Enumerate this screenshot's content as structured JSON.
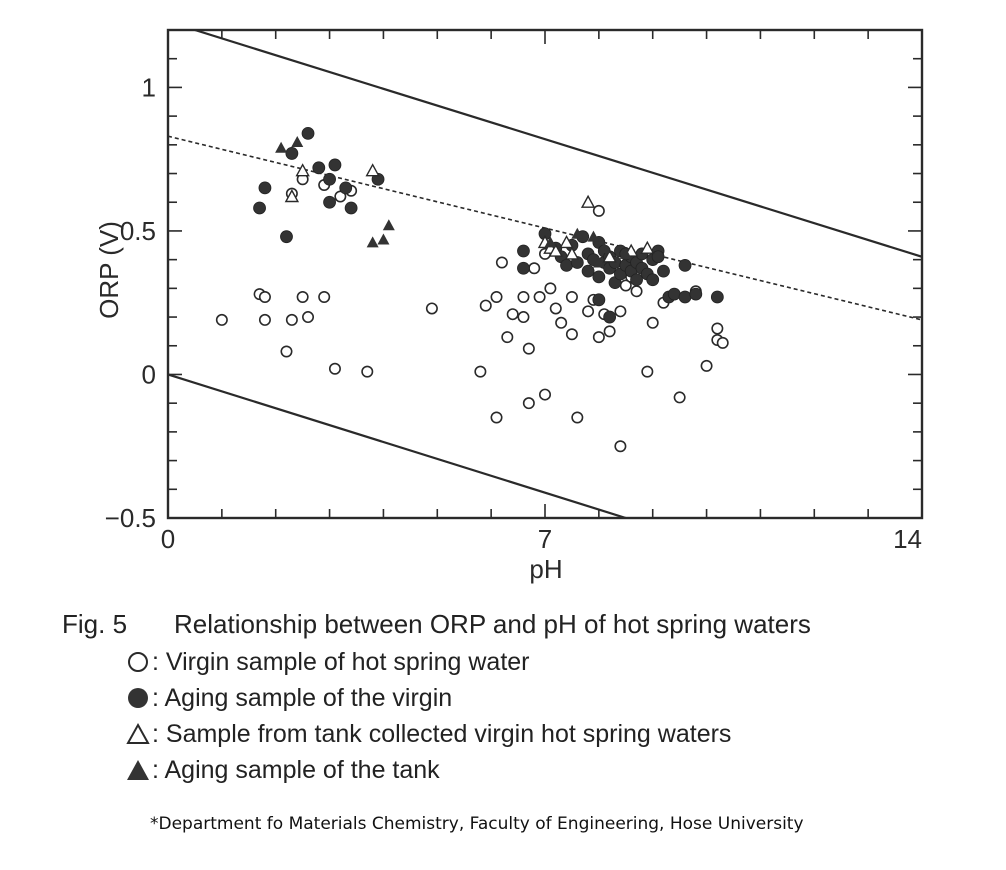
{
  "chart_data": {
    "type": "scatter",
    "title": "",
    "xlabel": "pH",
    "ylabel": "ORP (V)",
    "xlim": [
      0,
      14
    ],
    "ylim": [
      -0.5,
      1.2
    ],
    "x_ticks": [
      0,
      7,
      14
    ],
    "x_tick_labels": [
      "0",
      "7",
      "14"
    ],
    "y_ticks": [
      -0.5,
      0,
      0.5,
      1
    ],
    "y_tick_labels": [
      "−0.5",
      "0",
      "0.5",
      "1"
    ],
    "grid": false,
    "lines": [
      {
        "style": "solid",
        "points": [
          [
            0.5,
            1.2
          ],
          [
            14,
            0.41
          ]
        ]
      },
      {
        "style": "dashed",
        "points": [
          [
            0,
            0.83
          ],
          [
            14,
            0.19
          ]
        ]
      },
      {
        "style": "solid",
        "points": [
          [
            0,
            0.0
          ],
          [
            8.5,
            -0.5
          ]
        ]
      }
    ],
    "series": [
      {
        "name": "Virgin sample of hot spring water",
        "marker": "open-circle",
        "points": [
          [
            1.0,
            0.19
          ],
          [
            1.7,
            0.28
          ],
          [
            1.8,
            0.27
          ],
          [
            1.8,
            0.19
          ],
          [
            2.2,
            0.08
          ],
          [
            2.3,
            0.19
          ],
          [
            2.5,
            0.27
          ],
          [
            2.6,
            0.2
          ],
          [
            2.9,
            0.27
          ],
          [
            3.1,
            0.02
          ],
          [
            3.7,
            0.01
          ],
          [
            2.5,
            0.68
          ],
          [
            2.9,
            0.66
          ],
          [
            3.4,
            0.64
          ],
          [
            3.2,
            0.62
          ],
          [
            2.3,
            0.63
          ],
          [
            4.9,
            0.23
          ],
          [
            5.8,
            0.01
          ],
          [
            5.9,
            0.24
          ],
          [
            6.1,
            0.27
          ],
          [
            6.1,
            -0.15
          ],
          [
            6.2,
            0.39
          ],
          [
            6.3,
            0.13
          ],
          [
            6.4,
            0.21
          ],
          [
            6.6,
            0.27
          ],
          [
            6.6,
            0.2
          ],
          [
            6.7,
            0.09
          ],
          [
            6.7,
            -0.1
          ],
          [
            6.8,
            0.37
          ],
          [
            6.9,
            0.27
          ],
          [
            7.0,
            0.42
          ],
          [
            7.0,
            -0.07
          ],
          [
            7.1,
            0.3
          ],
          [
            7.2,
            0.23
          ],
          [
            7.3,
            0.18
          ],
          [
            7.5,
            0.14
          ],
          [
            7.5,
            0.27
          ],
          [
            7.6,
            -0.15
          ],
          [
            7.8,
            0.22
          ],
          [
            7.9,
            0.26
          ],
          [
            8.0,
            0.13
          ],
          [
            8.1,
            0.21
          ],
          [
            8.2,
            0.15
          ],
          [
            8.4,
            0.22
          ],
          [
            8.4,
            -0.25
          ],
          [
            8.5,
            0.31
          ],
          [
            8.6,
            0.34
          ],
          [
            8.7,
            0.29
          ],
          [
            8.9,
            0.01
          ],
          [
            9.0,
            0.18
          ],
          [
            9.2,
            0.25
          ],
          [
            9.5,
            -0.08
          ],
          [
            9.8,
            0.29
          ],
          [
            10.0,
            0.03
          ],
          [
            10.2,
            0.16
          ],
          [
            10.2,
            0.12
          ],
          [
            10.3,
            0.11
          ],
          [
            8.0,
            0.57
          ]
        ]
      },
      {
        "name": "Aging sample of the virgin",
        "marker": "filled-circle",
        "points": [
          [
            1.7,
            0.58
          ],
          [
            1.8,
            0.65
          ],
          [
            2.2,
            0.48
          ],
          [
            2.3,
            0.77
          ],
          [
            2.6,
            0.84
          ],
          [
            2.8,
            0.72
          ],
          [
            3.0,
            0.68
          ],
          [
            3.0,
            0.6
          ],
          [
            3.1,
            0.73
          ],
          [
            3.3,
            0.65
          ],
          [
            3.4,
            0.58
          ],
          [
            3.9,
            0.68
          ],
          [
            6.6,
            0.43
          ],
          [
            6.6,
            0.37
          ],
          [
            7.0,
            0.49
          ],
          [
            7.2,
            0.44
          ],
          [
            7.3,
            0.41
          ],
          [
            7.4,
            0.38
          ],
          [
            7.5,
            0.45
          ],
          [
            7.6,
            0.39
          ],
          [
            7.7,
            0.48
          ],
          [
            7.8,
            0.42
          ],
          [
            7.8,
            0.36
          ],
          [
            7.9,
            0.4
          ],
          [
            8.0,
            0.46
          ],
          [
            8.0,
            0.34
          ],
          [
            8.1,
            0.39
          ],
          [
            8.1,
            0.43
          ],
          [
            8.2,
            0.37
          ],
          [
            8.2,
            0.41
          ],
          [
            8.3,
            0.32
          ],
          [
            8.3,
            0.39
          ],
          [
            8.4,
            0.43
          ],
          [
            8.4,
            0.35
          ],
          [
            8.5,
            0.38
          ],
          [
            8.6,
            0.41
          ],
          [
            8.6,
            0.36
          ],
          [
            8.7,
            0.39
          ],
          [
            8.7,
            0.33
          ],
          [
            8.8,
            0.42
          ],
          [
            8.8,
            0.37
          ],
          [
            8.9,
            0.35
          ],
          [
            9.0,
            0.4
          ],
          [
            9.0,
            0.33
          ],
          [
            9.1,
            0.43
          ],
          [
            9.2,
            0.36
          ],
          [
            9.3,
            0.27
          ],
          [
            9.4,
            0.28
          ],
          [
            9.6,
            0.27
          ],
          [
            9.6,
            0.38
          ],
          [
            9.8,
            0.28
          ],
          [
            10.2,
            0.27
          ],
          [
            8.0,
            0.26
          ],
          [
            8.2,
            0.2
          ],
          [
            8.5,
            0.42
          ],
          [
            9.1,
            0.41
          ]
        ]
      },
      {
        "name": "Sample from tank collected virgin hot spring waters",
        "marker": "open-triangle",
        "points": [
          [
            2.3,
            0.62
          ],
          [
            2.5,
            0.71
          ],
          [
            3.8,
            0.71
          ],
          [
            7.0,
            0.46
          ],
          [
            7.1,
            0.44
          ],
          [
            7.2,
            0.43
          ],
          [
            7.4,
            0.46
          ],
          [
            7.8,
            0.6
          ],
          [
            7.5,
            0.42
          ],
          [
            8.2,
            0.41
          ],
          [
            8.6,
            0.43
          ],
          [
            8.9,
            0.44
          ]
        ]
      },
      {
        "name": "Aging sample of the tank",
        "marker": "filled-triangle",
        "points": [
          [
            2.1,
            0.79
          ],
          [
            2.4,
            0.81
          ],
          [
            3.8,
            0.46
          ],
          [
            4.0,
            0.47
          ],
          [
            4.1,
            0.52
          ],
          [
            7.1,
            0.46
          ],
          [
            7.6,
            0.49
          ],
          [
            7.9,
            0.48
          ],
          [
            8.1,
            0.44
          ],
          [
            8.5,
            0.42
          ],
          [
            8.0,
            0.39
          ]
        ]
      }
    ]
  },
  "caption": {
    "fig_number": "Fig. 5",
    "title": "Relationship between ORP and pH of hot spring waters",
    "legend": [
      {
        "marker": "open-circle",
        "label": ": Virgin sample of hot spring water"
      },
      {
        "marker": "filled-circle",
        "label": ": Aging sample of the virgin"
      },
      {
        "marker": "open-triangle",
        "label": ": Sample from tank collected virgin hot spring waters"
      },
      {
        "marker": "filled-triangle",
        "label": ": Aging sample of the tank"
      }
    ]
  },
  "footnote": "*Department fo Materials Chemistry, Faculty of Engineering, Hose University"
}
